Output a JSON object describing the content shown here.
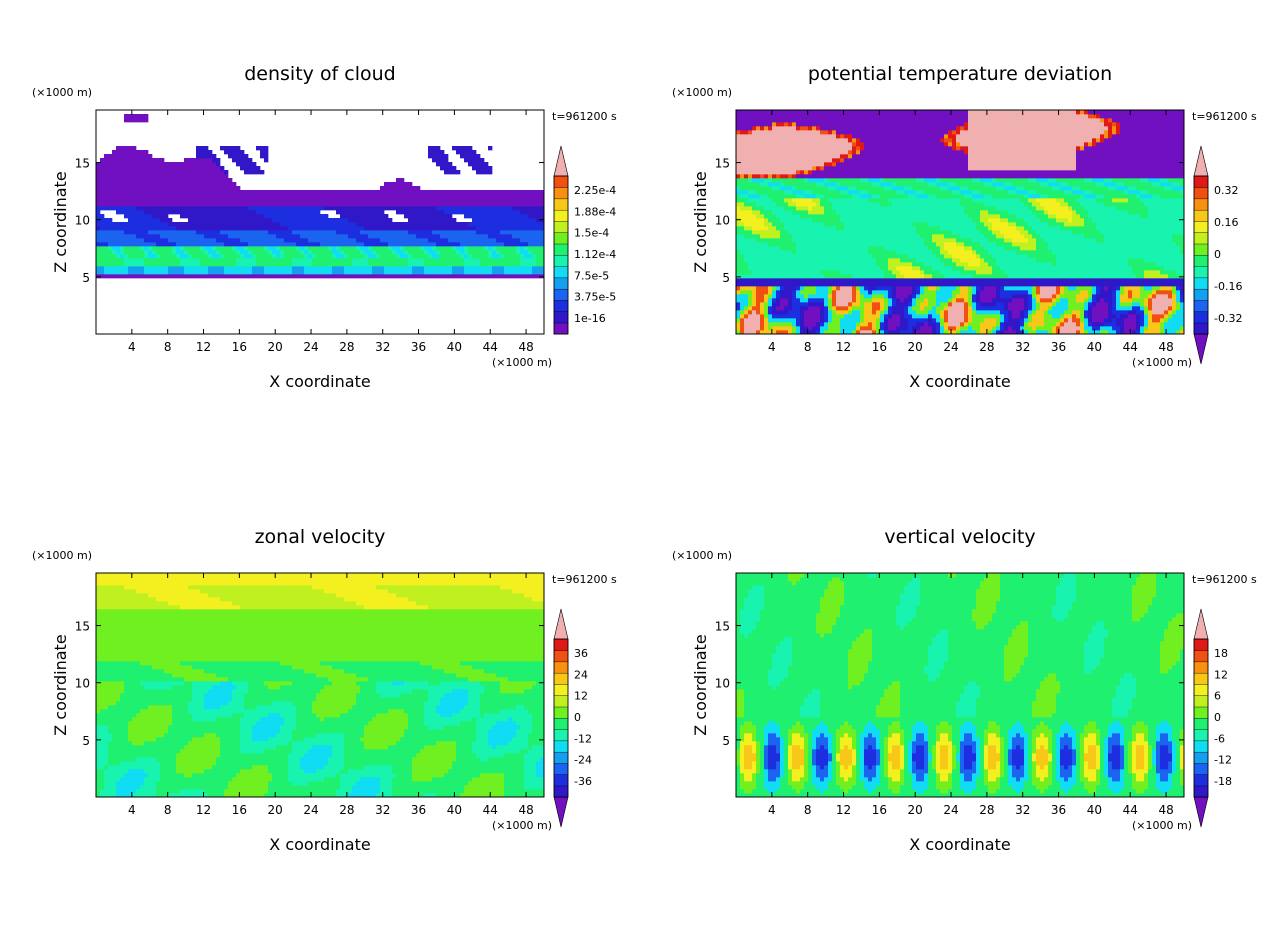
{
  "chart_data": [
    {
      "type": "heatmap",
      "title": "density of cloud",
      "xlabel": "X coordinate",
      "ylabel": "Z coordinate",
      "x_units": "(×1000 m)",
      "y_units": "(×1000 m)",
      "time_label": "t=961200 s",
      "xlim": [
        0,
        50
      ],
      "ylim": [
        0,
        19.6
      ],
      "x_ticks": [
        4,
        8,
        12,
        16,
        20,
        24,
        28,
        32,
        36,
        40,
        44,
        48
      ],
      "y_ticks": [
        5,
        10,
        15
      ],
      "colorbar_labels": [
        "2.25e-4",
        "1.88e-4",
        "1.5e-4",
        "1.12e-4",
        "7.5e-5",
        "3.75e-5",
        "1e-16"
      ],
      "colorbar_top_arrow": true,
      "colorbar_bottom_arrow": false,
      "field": "cloud",
      "colors": {
        "palette": [
          "#7010c0",
          "#3018c8",
          "#1c2ee0",
          "#1a64f0",
          "#14a0f0",
          "#10dcf4",
          "#18f4b0",
          "#20f070",
          "#70f020",
          "#c0f020",
          "#f4f020",
          "#f8c818",
          "#f89010",
          "#f05010",
          "#e01818",
          "#f0b0b0"
        ]
      }
    },
    {
      "type": "heatmap",
      "title": "potential temperature deviation",
      "xlabel": "X coordinate",
      "ylabel": "Z coordinate",
      "x_units": "(×1000 m)",
      "y_units": "(×1000 m)",
      "time_label": "t=961200 s",
      "xlim": [
        0,
        50
      ],
      "ylim": [
        0,
        19.6
      ],
      "x_ticks": [
        4,
        8,
        12,
        16,
        20,
        24,
        28,
        32,
        36,
        40,
        44,
        48
      ],
      "y_ticks": [
        5,
        10,
        15
      ],
      "colorbar_labels": [
        "0.32",
        "0.16",
        "0",
        "-0.16",
        "-0.32"
      ],
      "colorbar_top_arrow": true,
      "colorbar_bottom_arrow": true,
      "field": "theta",
      "colors": {
        "palette": [
          "#7010c0",
          "#3018c8",
          "#1c2ee0",
          "#1a64f0",
          "#14a0f0",
          "#10dcf4",
          "#18f4b0",
          "#20f070",
          "#70f020",
          "#c0f020",
          "#f4f020",
          "#f8c818",
          "#f89010",
          "#f05010",
          "#e01818",
          "#f0b0b0"
        ]
      }
    },
    {
      "type": "heatmap",
      "title": "zonal velocity",
      "xlabel": "X coordinate",
      "ylabel": "Z coordinate",
      "x_units": "(×1000 m)",
      "y_units": "(×1000 m)",
      "time_label": "t=961200 s",
      "xlim": [
        0,
        50
      ],
      "ylim": [
        0,
        19.6
      ],
      "x_ticks": [
        4,
        8,
        12,
        16,
        20,
        24,
        28,
        32,
        36,
        40,
        44,
        48
      ],
      "y_ticks": [
        5,
        10,
        15
      ],
      "colorbar_labels": [
        "36",
        "24",
        "12",
        "0",
        "-12",
        "-24",
        "-36"
      ],
      "colorbar_top_arrow": true,
      "colorbar_bottom_arrow": true,
      "field": "u",
      "colors": {
        "palette": [
          "#7010c0",
          "#3018c8",
          "#1c2ee0",
          "#1a64f0",
          "#14a0f0",
          "#10dcf4",
          "#18f4b0",
          "#20f070",
          "#70f020",
          "#c0f020",
          "#f4f020",
          "#f8c818",
          "#f89010",
          "#f05010",
          "#e01818",
          "#f0b0b0"
        ]
      }
    },
    {
      "type": "heatmap",
      "title": "vertical velocity",
      "xlabel": "X coordinate",
      "ylabel": "Z coordinate",
      "x_units": "(×1000 m)",
      "y_units": "(×1000 m)",
      "time_label": "t=961200 s",
      "xlim": [
        0,
        50
      ],
      "ylim": [
        0,
        19.6
      ],
      "x_ticks": [
        4,
        8,
        12,
        16,
        20,
        24,
        28,
        32,
        36,
        40,
        44,
        48
      ],
      "y_ticks": [
        5,
        10,
        15
      ],
      "colorbar_labels": [
        "18",
        "12",
        "6",
        "0",
        "-6",
        "-12",
        "-18"
      ],
      "colorbar_top_arrow": true,
      "colorbar_bottom_arrow": true,
      "field": "w",
      "colors": {
        "palette": [
          "#7010c0",
          "#3018c8",
          "#1c2ee0",
          "#1a64f0",
          "#14a0f0",
          "#10dcf4",
          "#18f4b0",
          "#20f070",
          "#70f020",
          "#c0f020",
          "#f4f020",
          "#f8c818",
          "#f89010",
          "#f05010",
          "#e01818",
          "#f0b0b0"
        ]
      }
    }
  ]
}
